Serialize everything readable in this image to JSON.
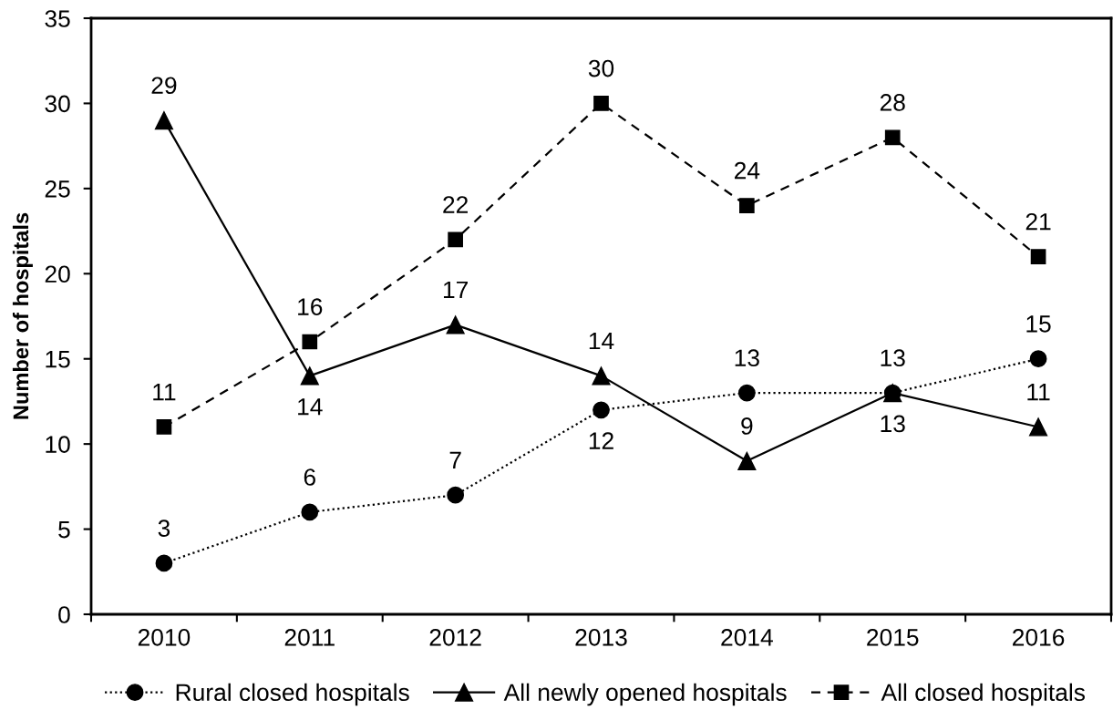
{
  "chart_data": {
    "type": "line",
    "ylabel": "Number of hospitals",
    "categories": [
      "2010",
      "2011",
      "2012",
      "2013",
      "2014",
      "2015",
      "2016"
    ],
    "series": [
      {
        "name": "Rural closed hospitals",
        "color": "#000000",
        "marker": "circle",
        "line_style": "dotted",
        "values": [
          3,
          6,
          7,
          12,
          13,
          13,
          15
        ]
      },
      {
        "name": "All newly opened hospitals",
        "color": "#000000",
        "marker": "triangle",
        "line_style": "solid",
        "values": [
          29,
          14,
          17,
          14,
          9,
          13,
          11
        ]
      },
      {
        "name": "All closed hospitals",
        "color": "#000000",
        "marker": "square",
        "line_style": "dashed",
        "values": [
          11,
          16,
          22,
          30,
          24,
          28,
          21
        ]
      }
    ],
    "ylim": [
      0,
      35
    ],
    "yticks": [
      0,
      5,
      10,
      15,
      20,
      25,
      30,
      35
    ],
    "data_labels": true,
    "legend": "bottom",
    "grid": false
  }
}
